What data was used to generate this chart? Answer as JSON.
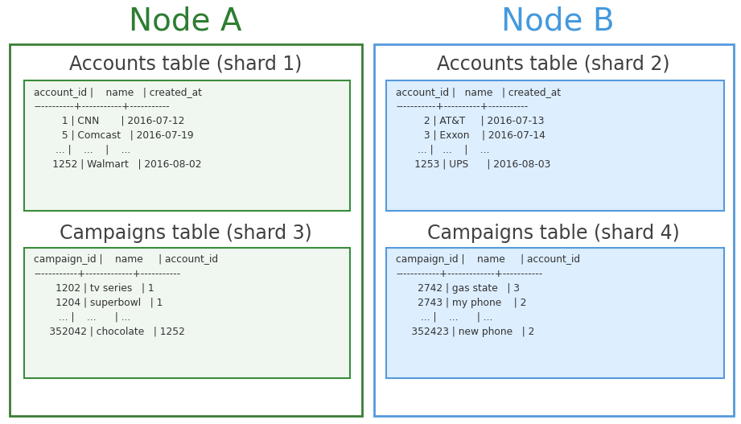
{
  "node_a_title": "Node A",
  "node_b_title": "Node B",
  "node_a_title_color": "#2e7d32",
  "node_b_title_color": "#4499dd",
  "outer_box_a_color": "#3a7d34",
  "outer_box_b_color": "#5599dd",
  "inner_box_a_bg": "#f0f7f0",
  "inner_box_b_bg": "#ddeeff",
  "inner_box_a_border": "#3a8c3a",
  "inner_box_b_border": "#5599dd",
  "table_a1_title": "Accounts table (shard 1)",
  "table_a2_title": "Campaigns table (shard 3)",
  "table_b1_title": "Accounts table (shard 2)",
  "table_b2_title": "Campaigns table (shard 4)",
  "table_a1_content": "account_id |    name   | created_at\n-----------+-----------+-----------\n         1 | CNN       | 2016-07-12\n         5 | Comcast   | 2016-07-19\n       ... |    ...    |    ...\n      1252 | Walmart   | 2016-08-02",
  "table_a2_content": "campaign_id |    name     | account_id\n------------+-------------+-----------\n       1202 | tv series   | 1\n       1204 | superbowl   | 1\n        ... |    ...      | ...\n     352042 | chocolate   | 1252",
  "table_b1_content": "account_id |   name   | created_at\n-----------+----------+-----------\n         2 | AT&T     | 2016-07-13\n         3 | Exxon    | 2016-07-14\n       ... |   ...    |    ...\n      1253 | UPS      | 2016-08-03",
  "table_b2_content": "campaign_id |    name     | account_id\n------------+-------------+-----------\n       2742 | gas state   | 3\n       2743 | my phone    | 2\n        ... |    ...      | ...\n     352423 | new phone   | 2",
  "bg_color": "#ffffff",
  "title_fontsize": 28,
  "subtitle_fontsize": 17,
  "mono_fontsize": 8.8
}
